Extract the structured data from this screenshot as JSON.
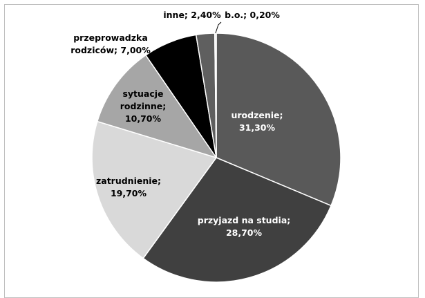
{
  "chart_data": {
    "type": "pie",
    "values": [
      31.3,
      28.7,
      19.7,
      10.7,
      7.0,
      2.4,
      0.2
    ],
    "value_labels": [
      "urodzenie; 31,30%",
      "przyjazd na studia; 28,70%",
      "zatrudnienie; 19,70%",
      "sytuacje rodzinne; 10,70%",
      "przeprowadzka rodziców; 7,00%",
      "inne; 2,40%",
      "b.o.; 0,20%"
    ],
    "colors": [
      "#595959",
      "#404040",
      "#d9d9d9",
      "#a6a6a6",
      "#000000",
      "#5f5f5f",
      "#e8e8e8"
    ]
  }
}
